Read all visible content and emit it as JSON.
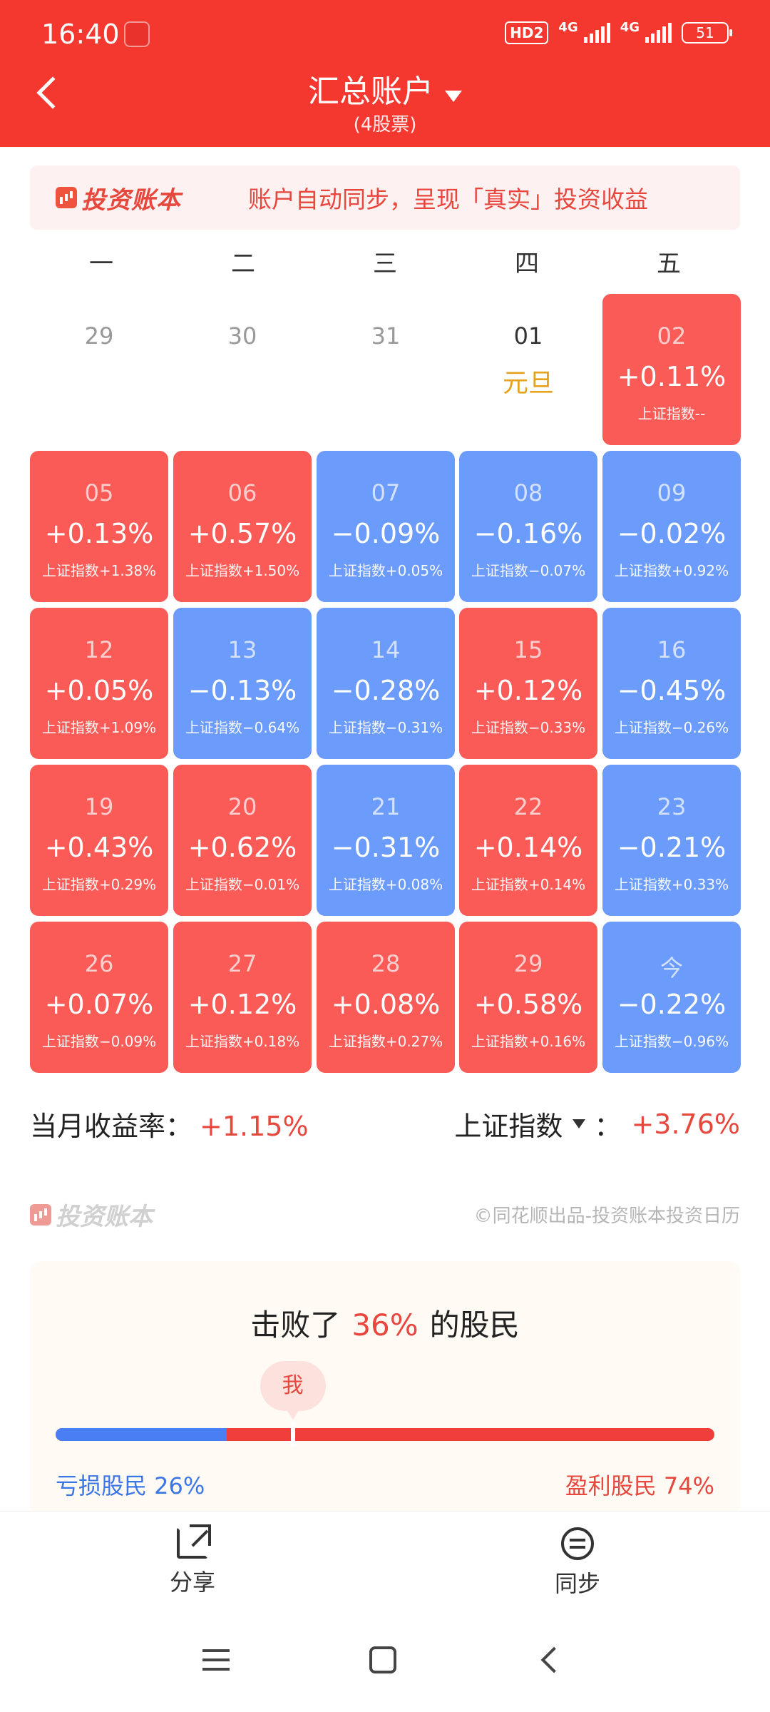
{
  "status_bar": {
    "time": "16:40",
    "hd_label": "HD2",
    "net1": "4G",
    "net2": "4G",
    "battery": "51"
  },
  "header": {
    "title": "汇总账户",
    "subtitle": "(4股票)",
    "bg_color": "#f5382f"
  },
  "banner": {
    "brand": "投资账本",
    "text": "账户自动同步，呈现「真实」投资收益"
  },
  "weekdays": [
    "一",
    "二",
    "三",
    "四",
    "五"
  ],
  "calendar": {
    "prev_days": [
      {
        "day": "29"
      },
      {
        "day": "30"
      },
      {
        "day": "31"
      }
    ],
    "holiday": {
      "day": "01",
      "name": "元旦"
    },
    "first_trading": {
      "day": "02",
      "pct": "+0.11%",
      "idx": "上证指数--",
      "trend": "up"
    },
    "weeks": [
      [
        {
          "day": "05",
          "pct": "+0.13%",
          "idx": "上证指数+1.38%",
          "trend": "up"
        },
        {
          "day": "06",
          "pct": "+0.57%",
          "idx": "上证指数+1.50%",
          "trend": "up"
        },
        {
          "day": "07",
          "pct": "−0.09%",
          "idx": "上证指数+0.05%",
          "trend": "down"
        },
        {
          "day": "08",
          "pct": "−0.16%",
          "idx": "上证指数−0.07%",
          "trend": "down"
        },
        {
          "day": "09",
          "pct": "−0.02%",
          "idx": "上证指数+0.92%",
          "trend": "down"
        }
      ],
      [
        {
          "day": "12",
          "pct": "+0.05%",
          "idx": "上证指数+1.09%",
          "trend": "up"
        },
        {
          "day": "13",
          "pct": "−0.13%",
          "idx": "上证指数−0.64%",
          "trend": "down"
        },
        {
          "day": "14",
          "pct": "−0.28%",
          "idx": "上证指数−0.31%",
          "trend": "down"
        },
        {
          "day": "15",
          "pct": "+0.12%",
          "idx": "上证指数−0.33%",
          "trend": "up"
        },
        {
          "day": "16",
          "pct": "−0.45%",
          "idx": "上证指数−0.26%",
          "trend": "down"
        }
      ],
      [
        {
          "day": "19",
          "pct": "+0.43%",
          "idx": "上证指数+0.29%",
          "trend": "up"
        },
        {
          "day": "20",
          "pct": "+0.62%",
          "idx": "上证指数−0.01%",
          "trend": "up"
        },
        {
          "day": "21",
          "pct": "−0.31%",
          "idx": "上证指数+0.08%",
          "trend": "down"
        },
        {
          "day": "22",
          "pct": "+0.14%",
          "idx": "上证指数+0.14%",
          "trend": "up"
        },
        {
          "day": "23",
          "pct": "−0.21%",
          "idx": "上证指数+0.33%",
          "trend": "down"
        }
      ],
      [
        {
          "day": "26",
          "pct": "+0.07%",
          "idx": "上证指数−0.09%",
          "trend": "up"
        },
        {
          "day": "27",
          "pct": "+0.12%",
          "idx": "上证指数+0.18%",
          "trend": "up"
        },
        {
          "day": "28",
          "pct": "+0.08%",
          "idx": "上证指数+0.27%",
          "trend": "up"
        },
        {
          "day": "29",
          "pct": "+0.58%",
          "idx": "上证指数+0.16%",
          "trend": "up"
        },
        {
          "day": "今",
          "pct": "−0.22%",
          "idx": "上证指数−0.96%",
          "trend": "down"
        }
      ]
    ],
    "colors": {
      "up": "#fa5b57",
      "down": "#6b9bfb"
    }
  },
  "summary": {
    "month_label": "当月收益率：",
    "month_value": "+1.15%",
    "index_label": "上证指数",
    "index_colon": "：",
    "index_value": "+3.76%"
  },
  "footer": {
    "brand": "投资账本",
    "copyright": "©同花顺出品-投资账本投资日历"
  },
  "beat": {
    "prefix": "击败了",
    "pct": "36%",
    "suffix": "的股民",
    "me_label": "我",
    "loss_label": "亏损股民 26%",
    "profit_label": "盈利股民 74%",
    "loss_ratio": 0.26,
    "me_position": 0.36,
    "colors": {
      "loss": "#4a7ef3",
      "profit": "#f03e3a"
    }
  },
  "actions": {
    "share": "分享",
    "sync": "同步"
  }
}
